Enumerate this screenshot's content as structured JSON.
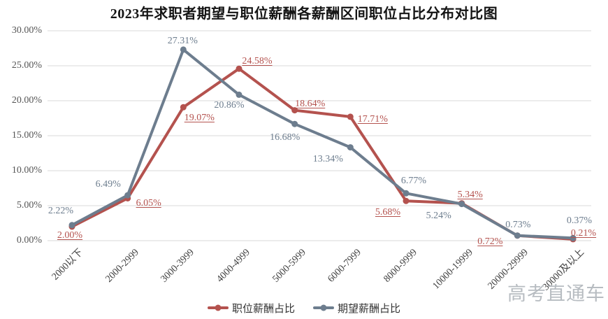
{
  "watermark": "高考直通车",
  "chart_data": {
    "type": "line",
    "title": "2023年求职者期望与职位薪酬各薪酬区间职位占比分布对比图",
    "categories": [
      "2000以下",
      "2000-2999",
      "3000-3999",
      "4000-4999",
      "5000-5999",
      "6000-7999",
      "8000-9999",
      "10000-19999",
      "20000-29999",
      "30000及以上"
    ],
    "series": [
      {
        "name": "职位薪酬占比",
        "color": "#b4524e",
        "underline_labels": true,
        "values": [
          2.0,
          6.05,
          19.07,
          24.58,
          18.64,
          17.71,
          5.68,
          5.34,
          0.72,
          0.21
        ],
        "labels": [
          "2.00%",
          "6.05%",
          "19.07%",
          "24.58%",
          "18.64%",
          "17.71%",
          "5.68%",
          "5.34%",
          "0.72%",
          "0.21%"
        ],
        "label_offsets": [
          [
            -3,
            13
          ],
          [
            30,
            7
          ],
          [
            23,
            16
          ],
          [
            26,
            -10
          ],
          [
            22,
            -9
          ],
          [
            32,
            4
          ],
          [
            -26,
            17
          ],
          [
            12,
            -12
          ],
          [
            -39,
            9
          ],
          [
            15,
            -8
          ]
        ]
      },
      {
        "name": "期望薪酬占比",
        "color": "#6d7d8e",
        "underline_labels": false,
        "values": [
          2.22,
          6.49,
          27.31,
          20.86,
          16.68,
          13.34,
          6.77,
          5.24,
          0.73,
          0.37
        ],
        "labels": [
          "2.22%",
          "6.49%",
          "27.31%",
          "20.86%",
          "16.68%",
          "13.34%",
          "6.77%",
          "5.24%",
          "0.73%",
          "0.37%"
        ],
        "label_offsets": [
          [
            -16,
            -20
          ],
          [
            -28,
            -15
          ],
          [
            -1,
            -12
          ],
          [
            -14,
            16
          ],
          [
            -14,
            20
          ],
          [
            -32,
            17
          ],
          [
            11,
            -17
          ],
          [
            -33,
            17
          ],
          [
            1,
            -15
          ],
          [
            9,
            -24
          ]
        ]
      }
    ],
    "y_ticks": [
      "0.00%",
      "5.00%",
      "10.00%",
      "15.00%",
      "20.00%",
      "25.00%",
      "30.00%"
    ],
    "ylim": [
      0,
      30
    ],
    "y_step": 5,
    "grid": true,
    "grid_color": "#d9d9d9",
    "legend_position": "bottom"
  }
}
